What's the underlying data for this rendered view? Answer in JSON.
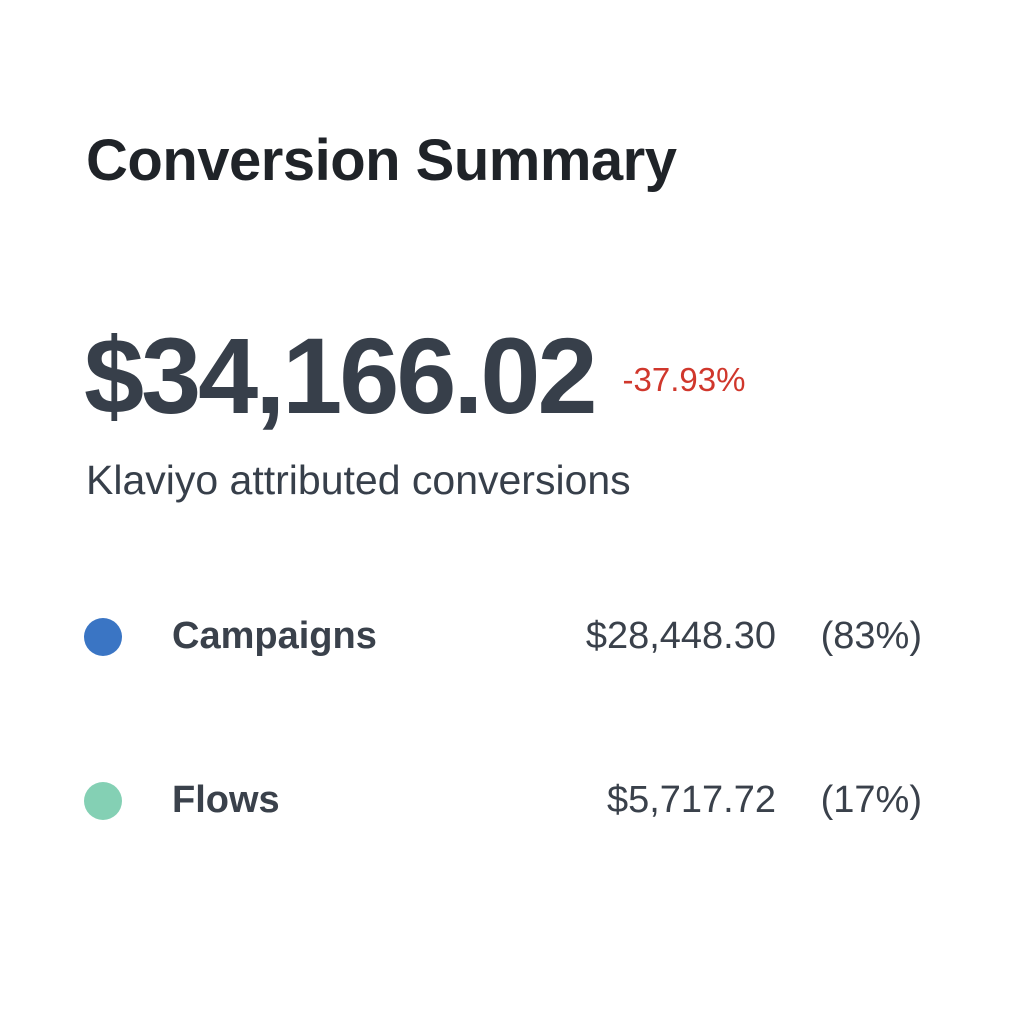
{
  "card": {
    "title": "Conversion Summary",
    "total_value": "$34,166.02",
    "total_change": "-37.93%",
    "subtitle": "Klaviyo attributed conversions",
    "change_color": "#d0372c"
  },
  "breakdown": [
    {
      "label": "Campaigns",
      "amount": "$28,448.30",
      "percent": "(83%)",
      "color": "#3a75c4"
    },
    {
      "label": "Flows",
      "amount": "$5,717.72",
      "percent": "(17%)",
      "color": "#84d0b4"
    }
  ]
}
